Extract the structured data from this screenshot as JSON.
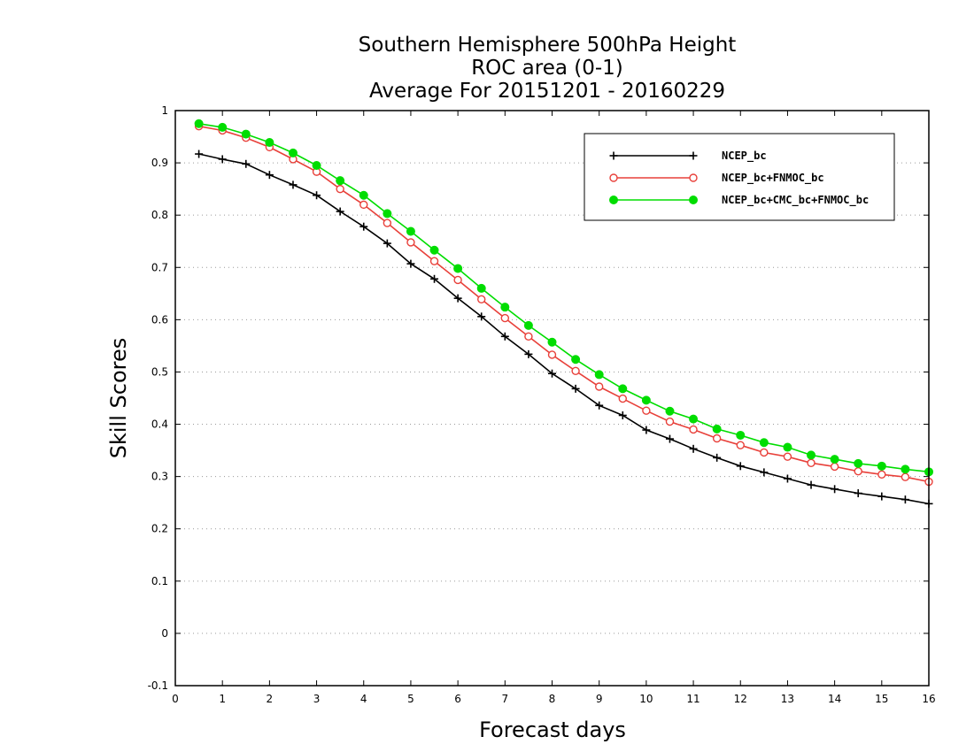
{
  "chart_data": {
    "type": "line",
    "title_lines": [
      "Southern Hemisphere 500hPa Height",
      "ROC area (0-1)",
      "Average For 20151201 - 20160229"
    ],
    "xlabel": "Forecast days",
    "ylabel": "Skill Scores",
    "xlim": [
      0,
      16
    ],
    "ylim": [
      -0.1,
      1
    ],
    "xticks": [
      0,
      1,
      2,
      3,
      4,
      5,
      6,
      7,
      8,
      9,
      10,
      11,
      12,
      13,
      14,
      15,
      16
    ],
    "yticks": [
      -0.1,
      0,
      0.1,
      0.2,
      0.3,
      0.4,
      0.5,
      0.6,
      0.7,
      0.8,
      0.9,
      1
    ],
    "ytick_labels": [
      "-0.1",
      "0",
      "0.1",
      "0.2",
      "0.3",
      "0.4",
      "0.5",
      "0.6",
      "0.7",
      "0.8",
      "0.9",
      "1"
    ],
    "grid": "horizontal dotted",
    "legend_position": "top-right",
    "x": [
      0.5,
      1,
      1.5,
      2,
      2.5,
      3,
      3.5,
      4,
      4.5,
      5,
      5.5,
      6,
      6.5,
      7,
      7.5,
      8,
      8.5,
      9,
      9.5,
      10,
      10.5,
      11,
      11.5,
      12,
      12.5,
      13,
      13.5,
      14,
      14.5,
      15,
      15.5,
      16
    ],
    "series": [
      {
        "name": "NCEP_bc",
        "color": "#000000",
        "marker": "plus",
        "values": [
          0.917,
          0.907,
          0.898,
          0.877,
          0.858,
          0.838,
          0.807,
          0.778,
          0.746,
          0.707,
          0.678,
          0.641,
          0.606,
          0.568,
          0.534,
          0.497,
          0.468,
          0.436,
          0.417,
          0.389,
          0.372,
          0.353,
          0.336,
          0.32,
          0.308,
          0.296,
          0.284,
          0.276,
          0.268,
          0.262,
          0.256,
          0.248
        ]
      },
      {
        "name": "NCEP_bc+FNMOC_bc",
        "color": "#e8403a",
        "marker": "open-circle",
        "values": [
          0.97,
          0.962,
          0.948,
          0.93,
          0.907,
          0.883,
          0.85,
          0.82,
          0.785,
          0.748,
          0.712,
          0.676,
          0.639,
          0.603,
          0.568,
          0.533,
          0.502,
          0.472,
          0.449,
          0.426,
          0.405,
          0.39,
          0.373,
          0.36,
          0.346,
          0.338,
          0.326,
          0.319,
          0.31,
          0.304,
          0.299,
          0.29
        ]
      },
      {
        "name": "NCEP_bc+CMC_bc+FNMOC_bc",
        "color": "#00dd00",
        "marker": "filled-circle",
        "values": [
          0.975,
          0.968,
          0.955,
          0.939,
          0.919,
          0.895,
          0.866,
          0.838,
          0.803,
          0.769,
          0.733,
          0.698,
          0.66,
          0.624,
          0.589,
          0.557,
          0.524,
          0.495,
          0.468,
          0.446,
          0.425,
          0.41,
          0.391,
          0.379,
          0.365,
          0.356,
          0.341,
          0.333,
          0.325,
          0.32,
          0.314,
          0.309
        ]
      }
    ]
  }
}
